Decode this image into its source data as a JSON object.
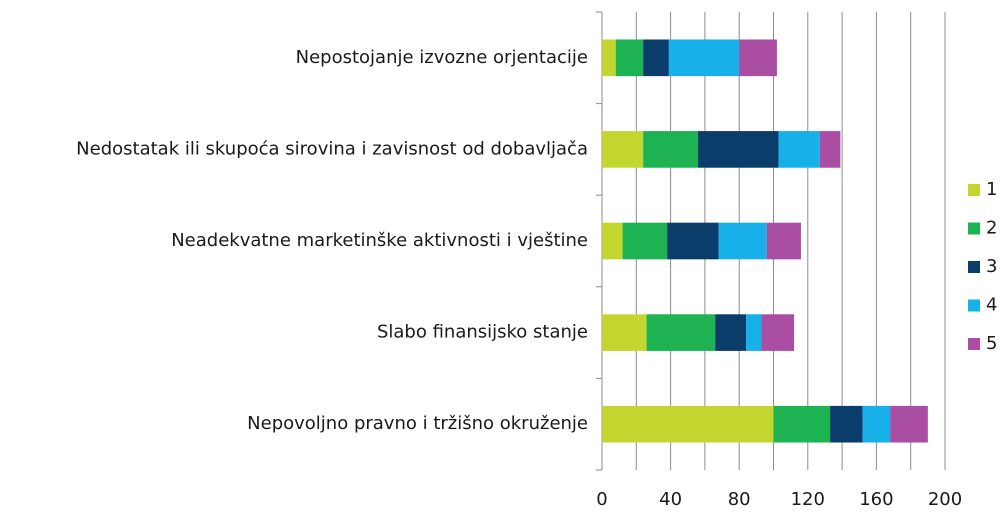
{
  "chart_data": {
    "type": "stacked_barh",
    "categories": [
      "Nepostojanje izvozne orjentacije",
      "Nedostatak ili skupoća sirovina i zavisnost od dobavljača",
      "Neadekvatne marketinške aktivnosti i vještine",
      "Slabo finansijsko stanje",
      "Nepovoljno pravno i tržišno okruženje"
    ],
    "series": [
      {
        "name": "1",
        "color": "#c3d62f",
        "values": [
          8,
          24,
          12,
          26,
          100
        ]
      },
      {
        "name": "2",
        "color": "#1db353",
        "values": [
          16,
          32,
          26,
          40,
          33
        ]
      },
      {
        "name": "3",
        "color": "#0b3d6b",
        "values": [
          15,
          47,
          30,
          18,
          19
        ]
      },
      {
        "name": "4",
        "color": "#18b0e8",
        "values": [
          41,
          24,
          28,
          9,
          16
        ]
      },
      {
        "name": "5",
        "color": "#a94ea3",
        "values": [
          22,
          12,
          20,
          19,
          22
        ]
      }
    ],
    "xlim": [
      0,
      200
    ],
    "xticks": [
      0,
      40,
      80,
      120,
      160,
      200
    ],
    "grid": true,
    "legend": "right"
  }
}
